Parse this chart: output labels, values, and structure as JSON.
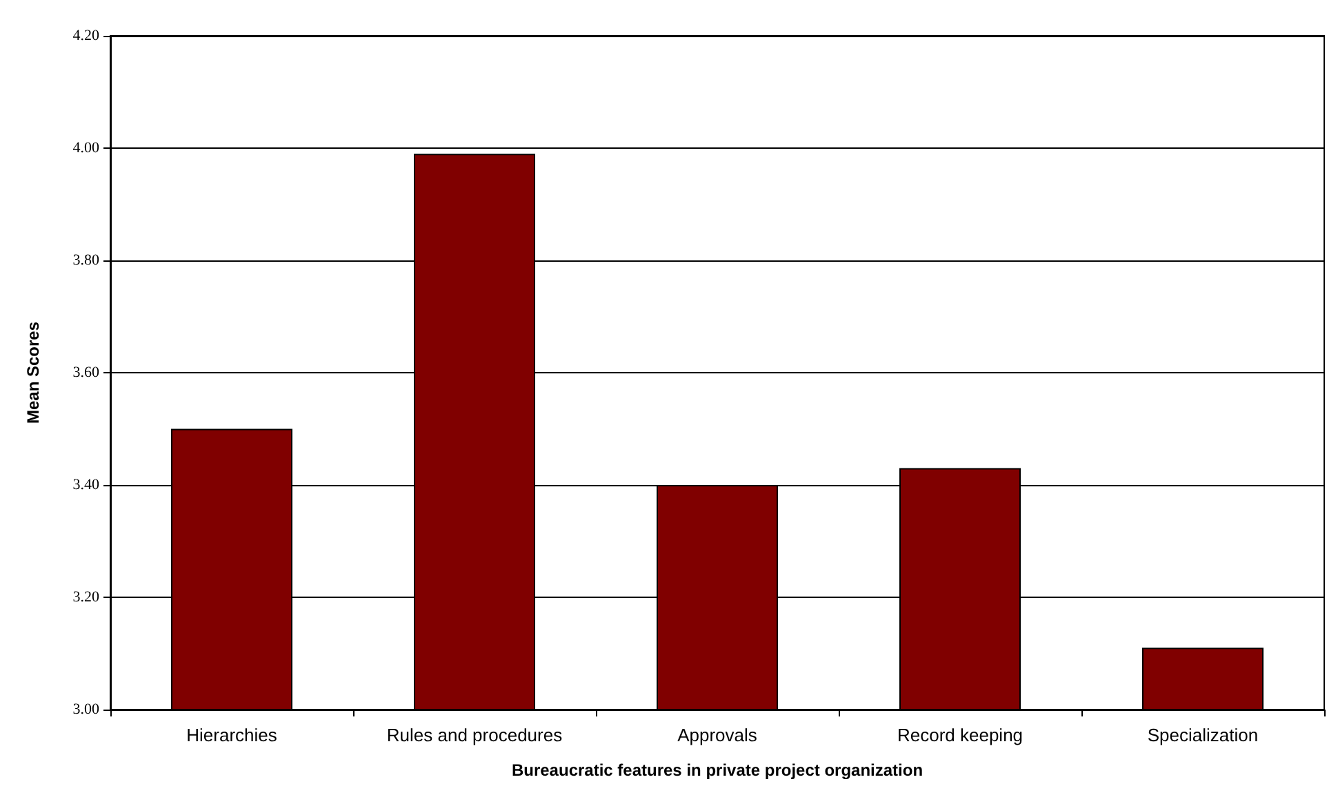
{
  "chart_data": {
    "type": "bar",
    "xlabel": "Bureaucratic features in private project organization",
    "ylabel": "Mean Scores",
    "categories": [
      "Hierarchies",
      "Rules and procedures",
      "Approvals",
      "Record keeping",
      "Specialization"
    ],
    "values": [
      3.5,
      3.99,
      3.4,
      3.43,
      3.11
    ],
    "color": "#800000",
    "ylim": [
      3.0,
      4.2
    ],
    "yticks": [
      {
        "value": 3.0,
        "label": "3.00"
      },
      {
        "value": 3.2,
        "label": "3.20"
      },
      {
        "value": 3.4,
        "label": "3.40"
      },
      {
        "value": 3.6,
        "label": "3.60"
      },
      {
        "value": 3.8,
        "label": "3.80"
      },
      {
        "value": 4.0,
        "label": "4.00"
      },
      {
        "value": 4.2,
        "label": "4.20"
      }
    ],
    "grid": "y"
  }
}
